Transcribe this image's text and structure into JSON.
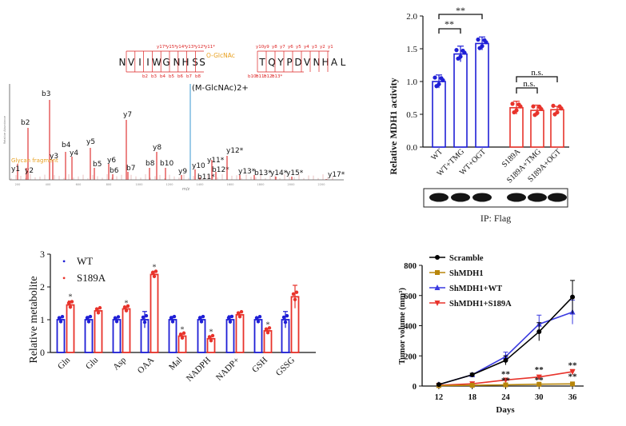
{
  "chart_data": [
    {
      "type": "spectrum",
      "peptide": [
        "N",
        "V",
        "I",
        "I",
        "W",
        "G",
        "N",
        "H",
        "S",
        "S",
        "T",
        "Q",
        "Y",
        "P",
        "D",
        "V",
        "N",
        "H",
        "A",
        "L"
      ],
      "modification_label": "O-GlcNAc",
      "y_fragment_labels": [
        "y17*",
        "y15*",
        "y14*",
        "y13*",
        "y12*",
        "y11*",
        "y10",
        "y9",
        "y8",
        "y7",
        "y6",
        "y5",
        "y4",
        "y3",
        "y2",
        "y1"
      ],
      "b_fragment_labels": [
        "b2",
        "b3",
        "b4",
        "b5",
        "b6",
        "b7",
        "b8",
        "b10*",
        "b11*",
        "b12*",
        "b13*"
      ],
      "precursor_label": "(M-GlcNAc)2+",
      "glycan_label": "Glycan fragment",
      "ylabel": "Relative Abundance",
      "xlabel": "m/z",
      "x_ticks": [
        "200",
        "400",
        "600",
        "800",
        "1000",
        "1200",
        "1400",
        "1600",
        "1800",
        "2000",
        "2200"
      ],
      "peak_labels": [
        "b2",
        "b3",
        "y3",
        "b4",
        "y4",
        "y5",
        "b5",
        "y6",
        "b6",
        "y7",
        "b7",
        "y8",
        "b8",
        "b10",
        "y9",
        "y10",
        "b11*",
        "y11*",
        "b12*",
        "y12*",
        "y13*",
        "b13*",
        "y14*",
        "y15*",
        "y17*",
        "y1",
        "y2"
      ]
    },
    {
      "type": "bar",
      "ylabel": "Relative MDH1 activity",
      "categories": [
        "WT",
        "WT+TMG",
        "WT+OGT",
        "S189A",
        "S189A+TMG",
        "S189A+OGT"
      ],
      "values": [
        1.0,
        1.42,
        1.58,
        0.6,
        0.56,
        0.57
      ],
      "errors": [
        0.1,
        0.12,
        0.1,
        0.1,
        0.08,
        0.05
      ],
      "ylim": [
        0,
        2.0
      ],
      "y_ticks": [
        "0.0",
        "0.5",
        "1.0",
        "1.5",
        "2.0"
      ],
      "colors": [
        "#1f1fd6",
        "#1f1fd6",
        "#1f1fd6",
        "#e8332b",
        "#e8332b",
        "#e8332b"
      ],
      "annotations": [
        "**",
        "**",
        "n.s.",
        "n.s."
      ],
      "blot_label": "IP: Flag"
    },
    {
      "type": "bar",
      "ylabel": "Relative metabolite",
      "categories": [
        "Gln",
        "Glu",
        "Asp",
        "OAA",
        "Mal",
        "NADPH",
        "NADP+",
        "GSH",
        "GSSG"
      ],
      "series": [
        {
          "name": "WT",
          "values": [
            1.0,
            1.0,
            1.0,
            1.0,
            1.0,
            1.0,
            1.0,
            1.0,
            1.0
          ],
          "errors": [
            0.08,
            0.1,
            0.05,
            0.25,
            0.1,
            0.1,
            0.12,
            0.08,
            0.25
          ]
        },
        {
          "name": "S189A",
          "values": [
            1.45,
            1.27,
            1.33,
            2.38,
            0.5,
            0.42,
            1.15,
            0.66,
            1.7
          ],
          "errors": [
            0.12,
            0.08,
            0.05,
            0.1,
            0.07,
            0.08,
            0.07,
            0.06,
            0.35
          ]
        }
      ],
      "ylim": [
        0,
        3
      ],
      "y_ticks": [
        "0",
        "1",
        "2",
        "3"
      ],
      "colors": [
        "#1f1fd6",
        "#e8332b"
      ],
      "significance": [
        "*",
        "",
        "*",
        "*",
        "*",
        "*",
        "",
        "*",
        ""
      ],
      "legend_position": "top-left"
    },
    {
      "type": "line",
      "xlabel": "Days",
      "ylabel": "Tumor volume (mm³)",
      "x": [
        12,
        18,
        24,
        30,
        36
      ],
      "ylim": [
        0,
        800
      ],
      "y_ticks": [
        "0",
        "200",
        "400",
        "600",
        "800"
      ],
      "series": [
        {
          "name": "Scramble",
          "values": [
            10,
            75,
            170,
            360,
            590
          ],
          "errors": [
            2,
            10,
            30,
            60,
            110
          ],
          "color": "#000000",
          "marker": "circle"
        },
        {
          "name": "ShMDH1",
          "values": [
            3,
            5,
            8,
            12,
            14
          ],
          "errors": [
            1,
            1,
            2,
            2,
            3
          ],
          "color": "#b8860b",
          "marker": "square"
        },
        {
          "name": "ShMDH1+WT",
          "values": [
            10,
            75,
            195,
            410,
            490
          ],
          "errors": [
            2,
            10,
            30,
            60,
            80
          ],
          "color": "#3a3ae0",
          "marker": "triangle"
        },
        {
          "name": "ShMDH1+S189A",
          "values": [
            5,
            15,
            40,
            60,
            95
          ],
          "errors": [
            1,
            3,
            8,
            10,
            15
          ],
          "color": "#e8332b",
          "marker": "triangle-down"
        }
      ],
      "significance": [
        "**",
        "**",
        "**",
        "**",
        "**",
        "**"
      ],
      "legend_position": "top-left"
    }
  ]
}
